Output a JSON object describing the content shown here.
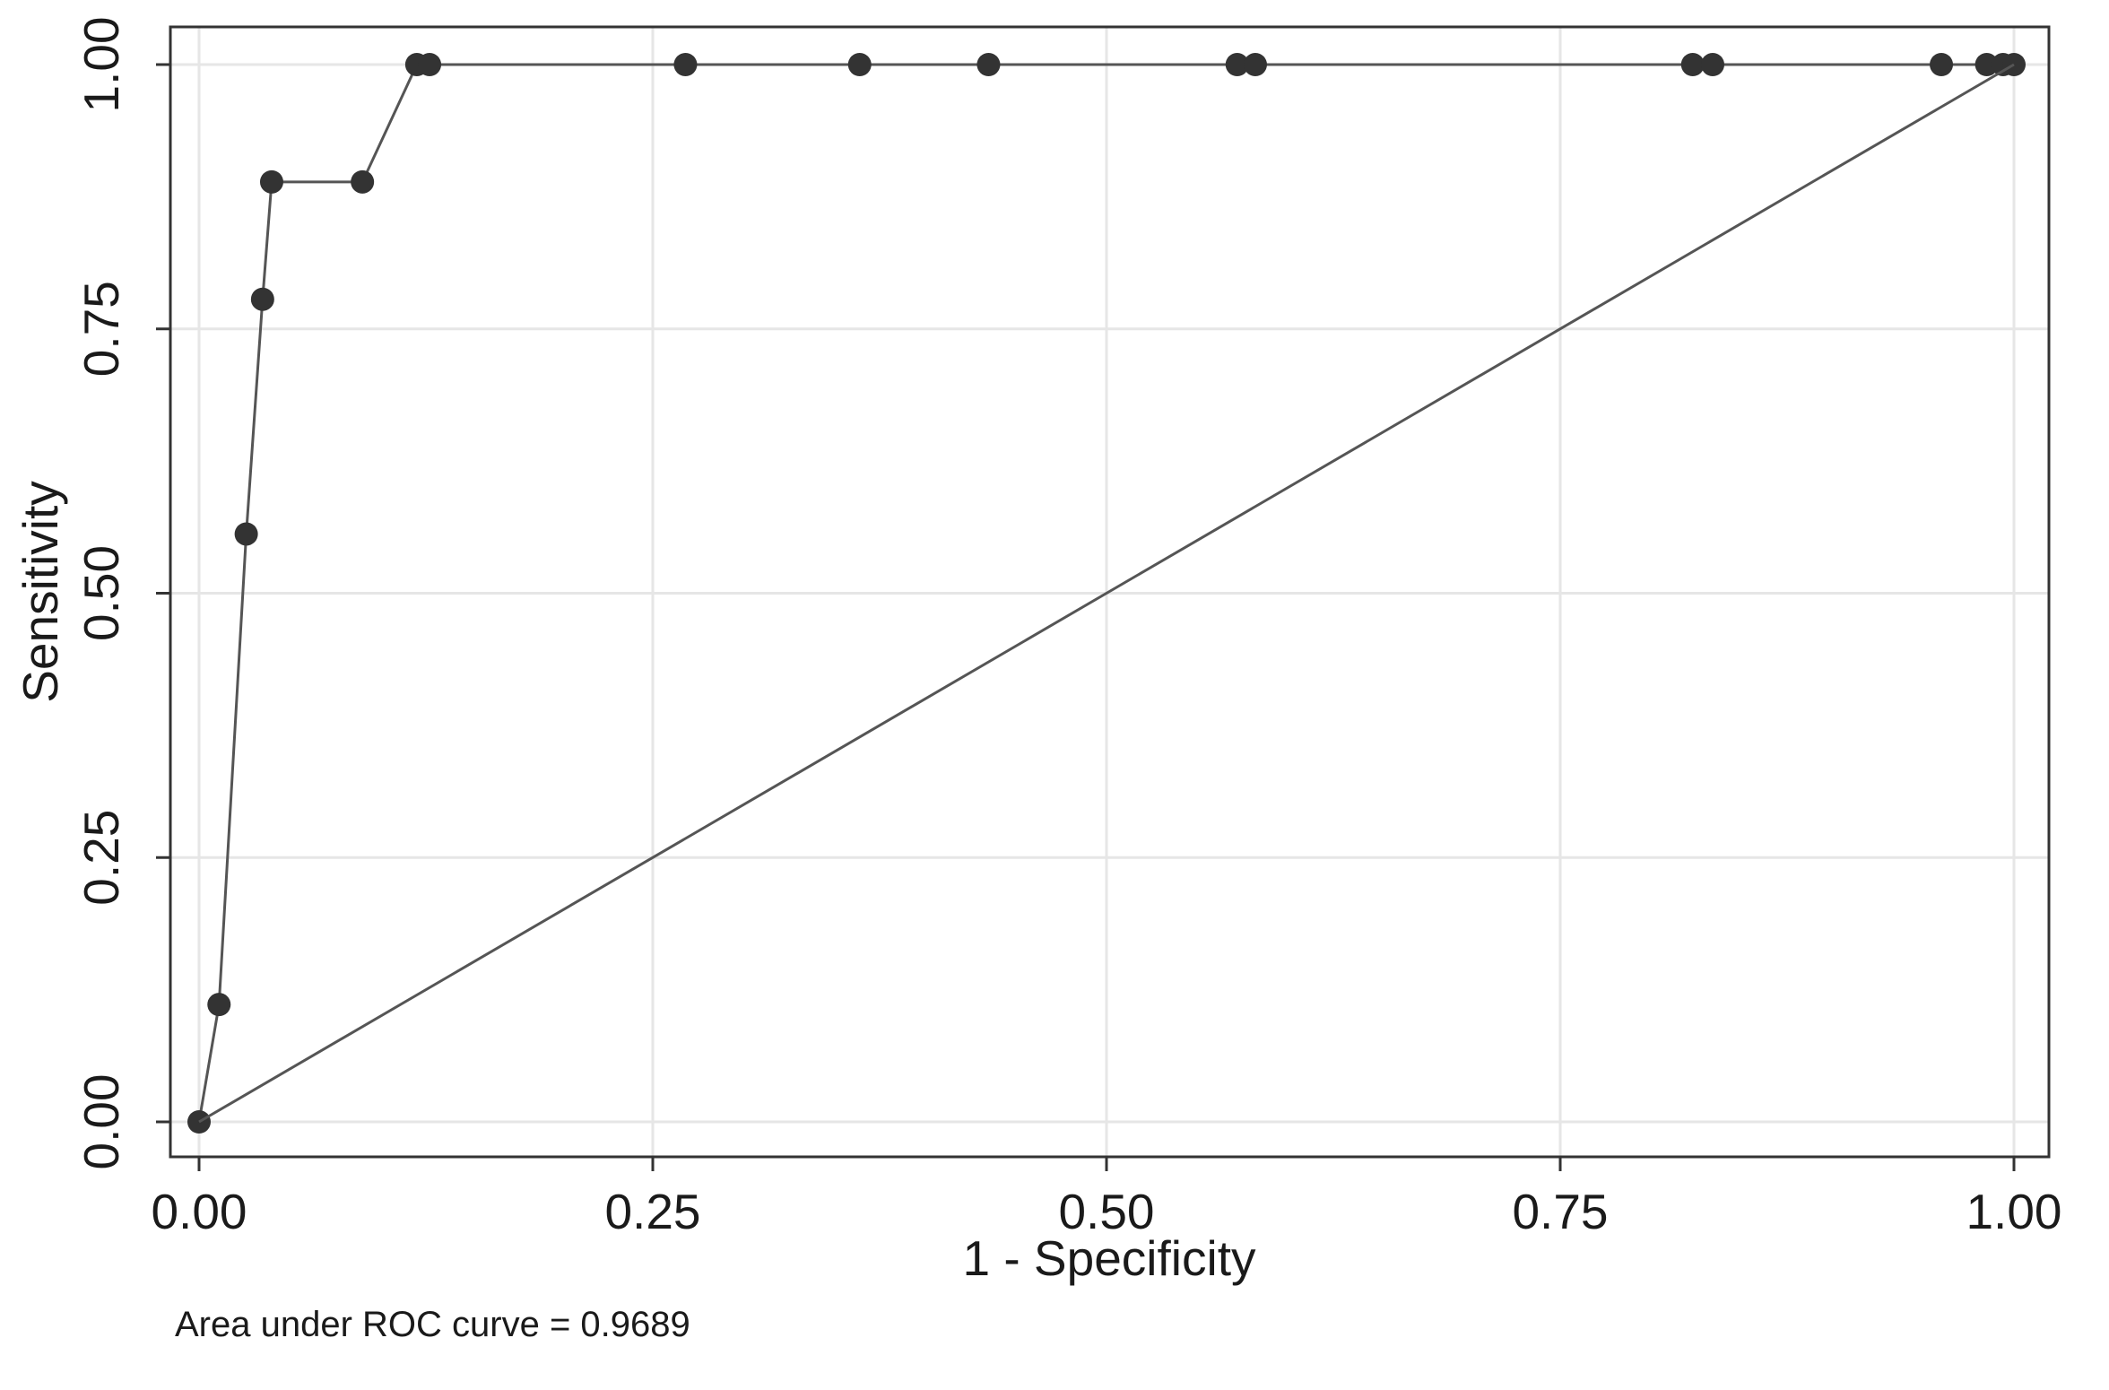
{
  "chart_data": {
    "type": "line",
    "title": "",
    "xlabel": "1 - Specificity",
    "ylabel": "Sensitivity",
    "xlim": [
      0,
      1
    ],
    "ylim": [
      0,
      1
    ],
    "xticks": [
      "0.00",
      "0.25",
      "0.50",
      "0.75",
      "1.00"
    ],
    "yticks": [
      "0.00",
      "0.25",
      "0.50",
      "0.75",
      "1.00"
    ],
    "grid": true,
    "note": "Area under ROC curve = 0.9689",
    "series": [
      {
        "markers": true,
        "color": "#555555",
        "marker_color": "#333333",
        "x": [
          0.0,
          0.011,
          0.026,
          0.035,
          0.04,
          0.09,
          0.12,
          0.127,
          0.268,
          0.364,
          0.435,
          0.572,
          0.582,
          0.823,
          0.834,
          0.96,
          0.985,
          0.994,
          1.0
        ],
        "y": [
          0.0,
          0.111,
          0.556,
          0.778,
          0.889,
          0.889,
          1.0,
          1.0,
          1.0,
          1.0,
          1.0,
          1.0,
          1.0,
          1.0,
          1.0,
          1.0,
          1.0,
          1.0,
          1.0
        ]
      },
      {
        "markers": false,
        "color": "#555555",
        "x": [
          0,
          1
        ],
        "y": [
          0,
          1
        ]
      }
    ]
  }
}
